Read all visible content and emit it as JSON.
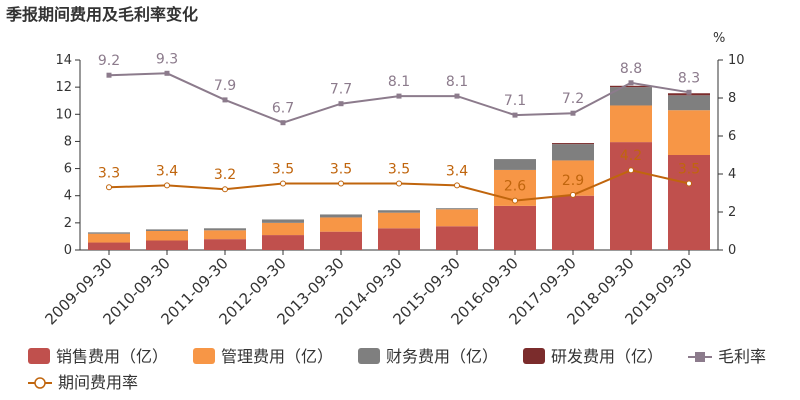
{
  "chart_data": {
    "type": "bar",
    "title": "季报期间费用及毛利率变化",
    "categories": [
      "2009-09-30",
      "2010-09-30",
      "2011-09-30",
      "2012-09-30",
      "2013-09-30",
      "2014-09-30",
      "2015-09-30",
      "2016-09-30",
      "2017-09-30",
      "2018-09-30",
      "2019-09-30"
    ],
    "y_left": {
      "min": 0,
      "max": 14,
      "ticks": [
        0,
        2,
        4,
        6,
        8,
        10,
        12,
        14
      ]
    },
    "y_right": {
      "min": 0,
      "max": 10,
      "ticks": [
        0,
        2,
        4,
        6,
        8,
        10
      ],
      "unit": "%"
    },
    "series": [
      {
        "name": "销售费用（亿）",
        "kind": "bar",
        "axis": "left",
        "color": "#c0504d",
        "values": [
          0.55,
          0.7,
          0.8,
          1.1,
          1.35,
          1.6,
          1.75,
          3.25,
          4.0,
          7.95,
          7.0
        ]
      },
      {
        "name": "管理费用（亿）",
        "kind": "bar",
        "axis": "left",
        "color": "#f79646",
        "values": [
          0.65,
          0.7,
          0.65,
          0.9,
          1.05,
          1.15,
          1.25,
          2.65,
          2.6,
          2.7,
          3.3
        ]
      },
      {
        "name": "财务费用（亿）",
        "kind": "bar",
        "axis": "left",
        "color": "#7f7f7f",
        "values": [
          0.1,
          0.12,
          0.15,
          0.25,
          0.22,
          0.18,
          0.08,
          0.8,
          1.2,
          1.35,
          1.1
        ]
      },
      {
        "name": "研发费用（亿）",
        "kind": "bar",
        "axis": "left",
        "color": "#7b2c2c",
        "values": [
          0,
          0,
          0,
          0,
          0,
          0,
          0,
          0,
          0.08,
          0.1,
          0.15
        ]
      },
      {
        "name": "毛利率",
        "kind": "line",
        "axis": "right",
        "color": "#8c7b8c",
        "values": [
          9.2,
          9.3,
          7.9,
          6.7,
          7.7,
          8.1,
          8.1,
          7.1,
          7.2,
          8.8,
          8.3
        ],
        "labels": [
          "9.2",
          "9.3",
          "7.9",
          "6.7",
          "7.7",
          "8.1",
          "8.1",
          "7.1",
          "7.2",
          "8.8",
          "8.3"
        ]
      },
      {
        "name": "期间费用率",
        "kind": "line",
        "axis": "right",
        "color": "#c0650d",
        "values": [
          3.3,
          3.4,
          3.2,
          3.5,
          3.5,
          3.5,
          3.4,
          2.6,
          2.9,
          4.2,
          3.5
        ],
        "labels": [
          "3.3",
          "3.4",
          "3.2",
          "3.5",
          "3.5",
          "3.5",
          "3.4",
          "2.6",
          "2.9",
          "4.2",
          "3.5"
        ]
      }
    ],
    "legend_position": "bottom",
    "grid": false
  }
}
